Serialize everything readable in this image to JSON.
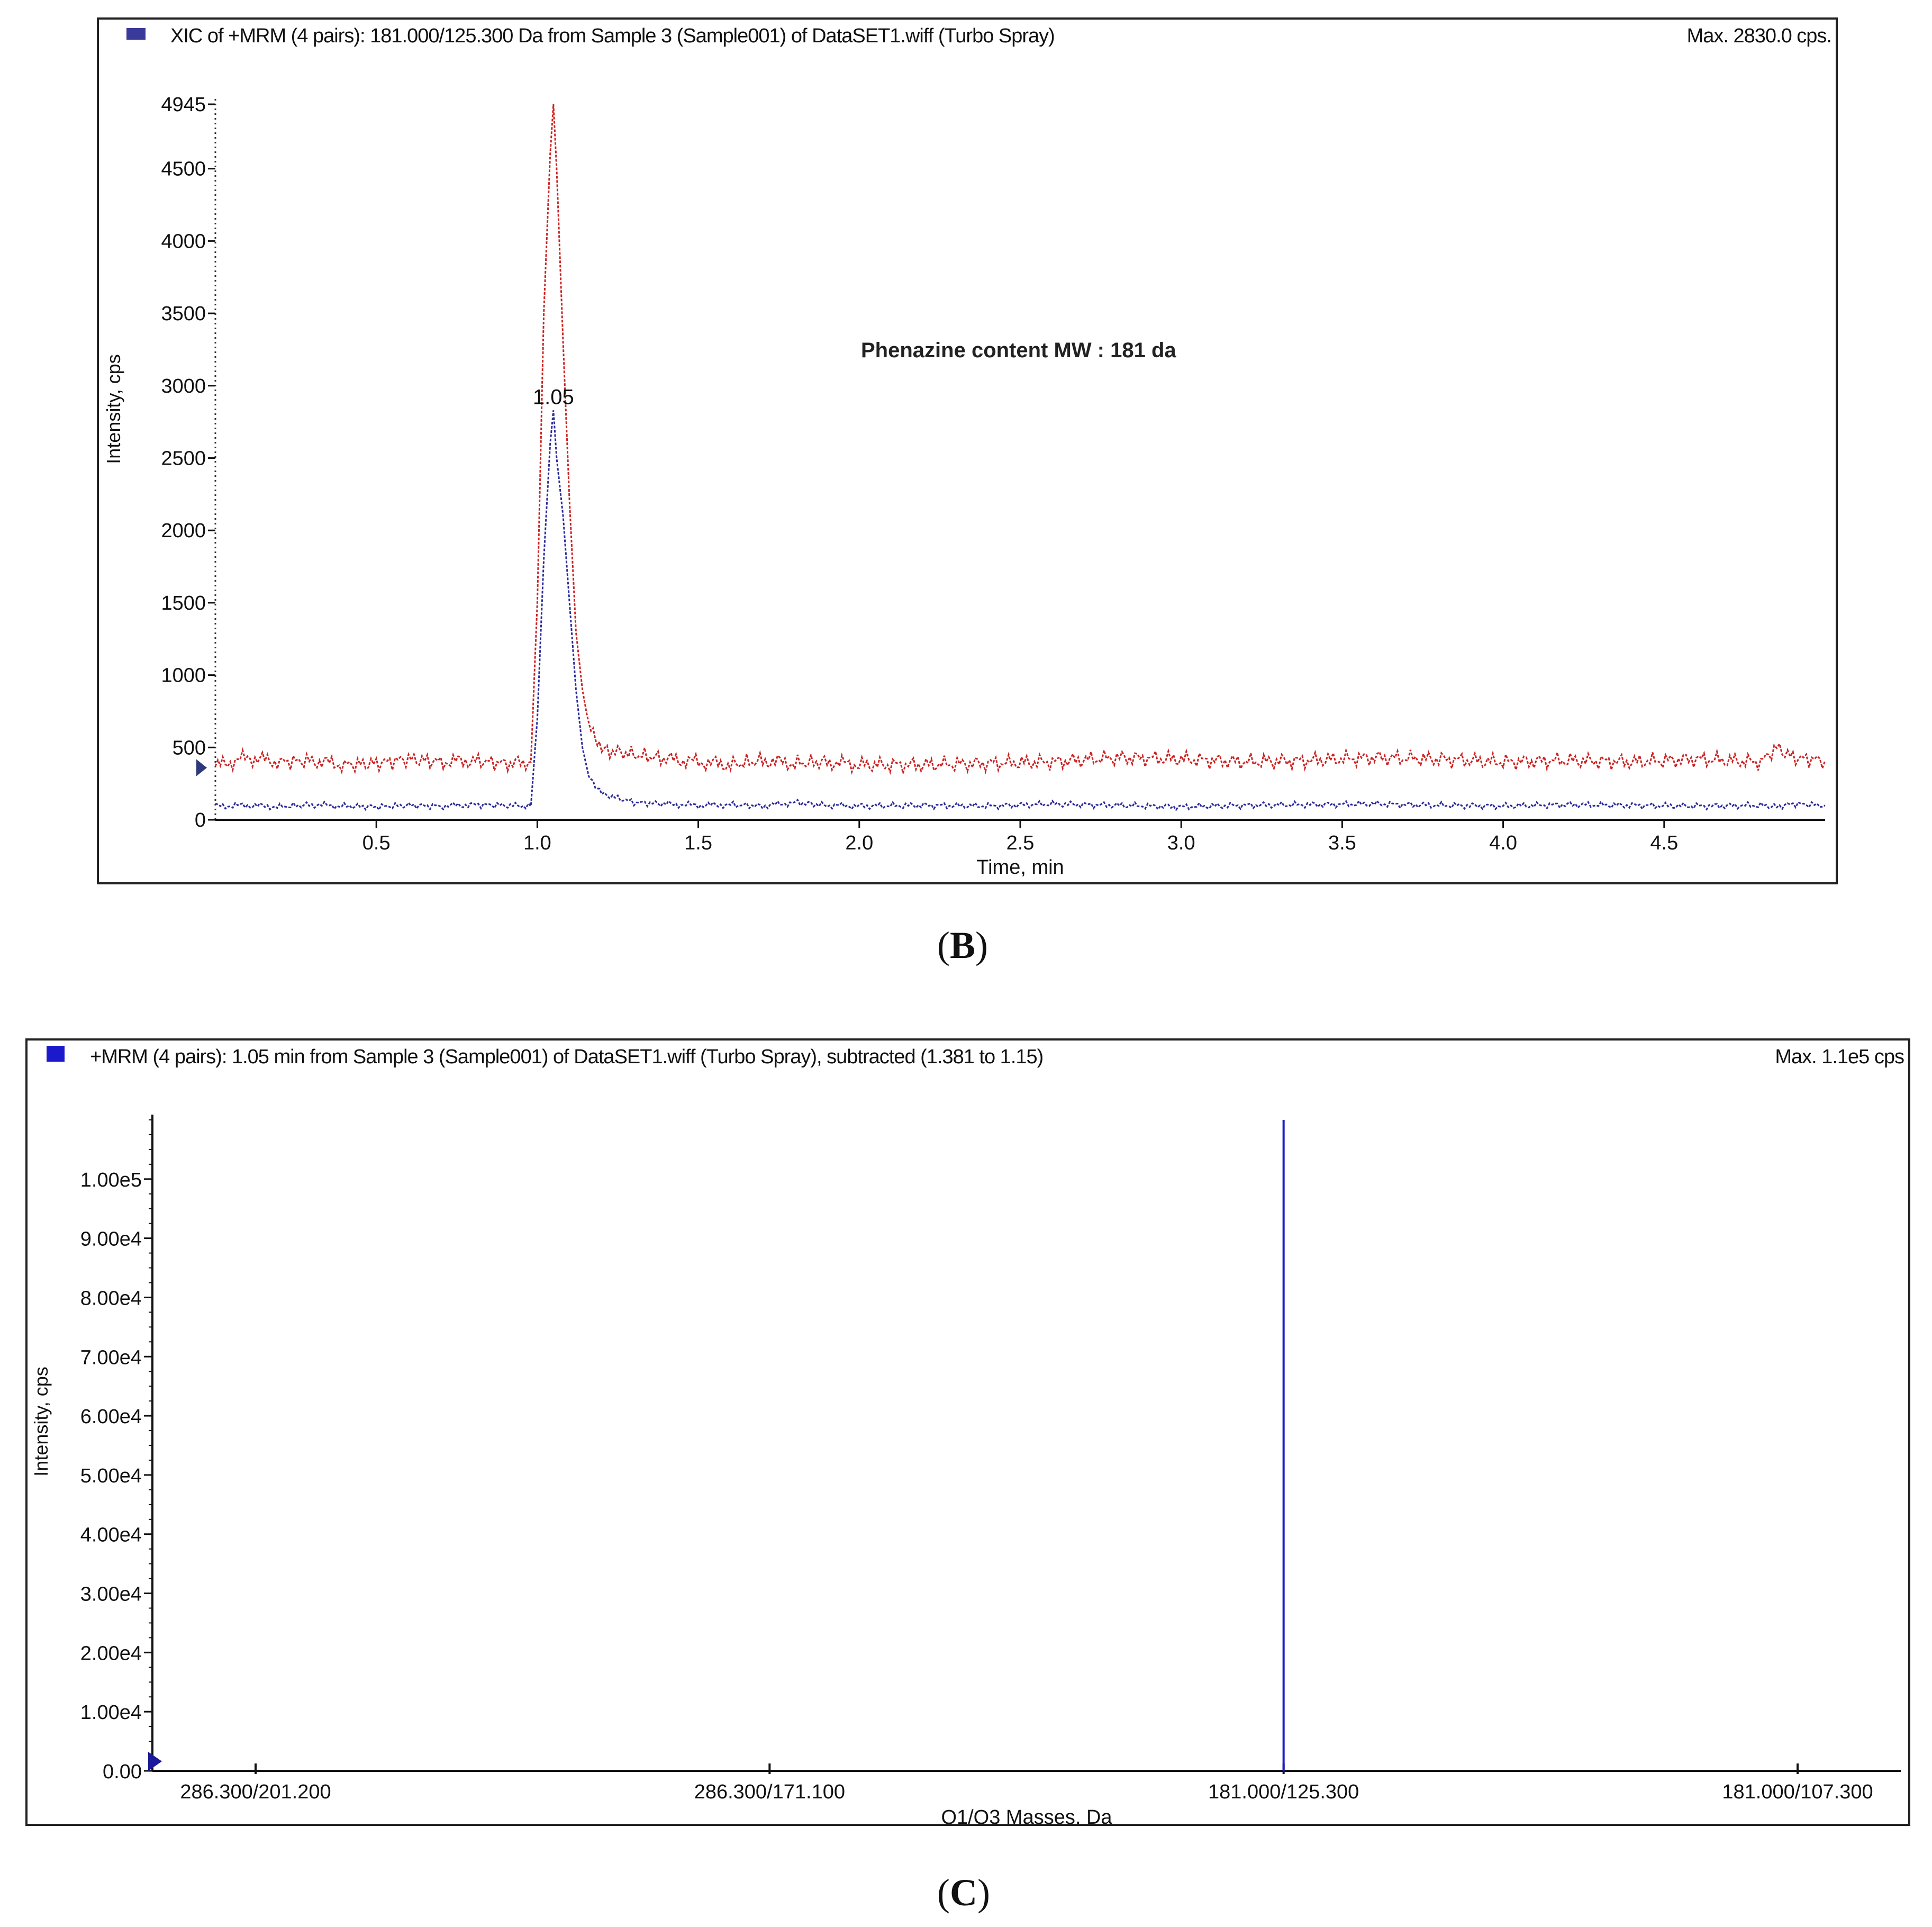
{
  "chart_data": [
    {
      "type": "line",
      "header": "XIC of +MRM (4 pairs): 181.000/125.300 Da from Sample 3 (Sample001) of DataSET1.wiff (Turbo Spray)",
      "max_label": "Max. 2830.0 cps.",
      "annotation": "Phenazine content  MW : 181 da",
      "peak_label": "1.05",
      "xlabel": "Time, min",
      "ylabel": "Intensity, cps",
      "xlim": [
        0,
        5.0
      ],
      "ylim": [
        0,
        4945
      ],
      "x_ticks": [
        "0.5",
        "1.0",
        "1.5",
        "2.0",
        "2.5",
        "3.0",
        "3.5",
        "4.0",
        "4.5"
      ],
      "y_ticks": [
        "0",
        "500",
        "1000",
        "1500",
        "2000",
        "2500",
        "3000",
        "3500",
        "4000",
        "4500",
        "4945"
      ],
      "grid": false,
      "series": [
        {
          "color": "#cc2222",
          "x": [
            0.0,
            0.1,
            0.2,
            0.3,
            0.4,
            0.5,
            0.6,
            0.7,
            0.8,
            0.9,
            0.98,
            1.0,
            1.02,
            1.04,
            1.05,
            1.06,
            1.08,
            1.1,
            1.12,
            1.14,
            1.16,
            1.18,
            1.2,
            1.25,
            1.3,
            1.4,
            1.5,
            1.6,
            1.7,
            1.8,
            1.9,
            2.0,
            2.2,
            2.4,
            2.6,
            2.8,
            3.0,
            3.2,
            3.4,
            3.6,
            3.8,
            4.0,
            4.2,
            4.4,
            4.6,
            4.8,
            4.85,
            4.9,
            5.0
          ],
          "values": [
            370,
            430,
            400,
            410,
            380,
            390,
            420,
            400,
            410,
            390,
            400,
            1500,
            3500,
            4600,
            4945,
            4500,
            3300,
            2200,
            1300,
            900,
            650,
            550,
            480,
            470,
            450,
            420,
            400,
            380,
            410,
            390,
            400,
            380,
            380,
            390,
            400,
            430,
            420,
            400,
            410,
            430,
            420,
            400,
            410,
            400,
            420,
            400,
            500,
            430,
            410
          ]
        },
        {
          "color": "#2b2b9b",
          "x": [
            0.0,
            0.1,
            0.2,
            0.3,
            0.4,
            0.5,
            0.6,
            0.7,
            0.8,
            0.9,
            0.98,
            1.0,
            1.02,
            1.04,
            1.05,
            1.06,
            1.08,
            1.1,
            1.12,
            1.14,
            1.16,
            1.18,
            1.2,
            1.25,
            1.3,
            1.4,
            1.5,
            1.6,
            1.7,
            1.8,
            1.9,
            2.0,
            2.2,
            2.4,
            2.6,
            2.8,
            3.0,
            3.2,
            3.4,
            3.6,
            3.8,
            4.0,
            4.2,
            4.4,
            4.6,
            4.8,
            4.85,
            4.9,
            5.0
          ],
          "values": [
            95,
            100,
            90,
            105,
            95,
            90,
            100,
            95,
            105,
            100,
            95,
            700,
            1800,
            2600,
            2830,
            2500,
            2100,
            1500,
            900,
            500,
            300,
            220,
            180,
            150,
            120,
            110,
            100,
            105,
            95,
            120,
            100,
            95,
            100,
            95,
            110,
            100,
            90,
            100,
            105,
            110,
            100,
            95,
            105,
            100,
            95,
            100,
            90,
            110,
            100
          ]
        }
      ]
    },
    {
      "type": "bar",
      "header": "+MRM (4 pairs): 1.05 min from Sample 3 (Sample001) of DataSET1.wiff (Turbo Spray), subtracted (1.381 to 1.15)",
      "max_label": "Max. 1.1e5 cps",
      "xlabel": "Q1/Q3 Masses, Da",
      "ylabel": "Intensity, cps",
      "categories": [
        "286.300/201.200",
        "286.300/171.100",
        "181.000/125.300",
        "181.000/107.300"
      ],
      "values": [
        0,
        0,
        110000,
        0
      ],
      "ylim": [
        0,
        110000
      ],
      "y_ticks": [
        "0.00",
        "1.00e4",
        "2.00e4",
        "3.00e4",
        "4.00e4",
        "5.00e4",
        "6.00e4",
        "7.00e4",
        "8.00e4",
        "9.00e4",
        "1.00e5"
      ],
      "color": "#1a1acc",
      "grid": false
    }
  ],
  "captions": {
    "b": "B",
    "c": "C"
  }
}
